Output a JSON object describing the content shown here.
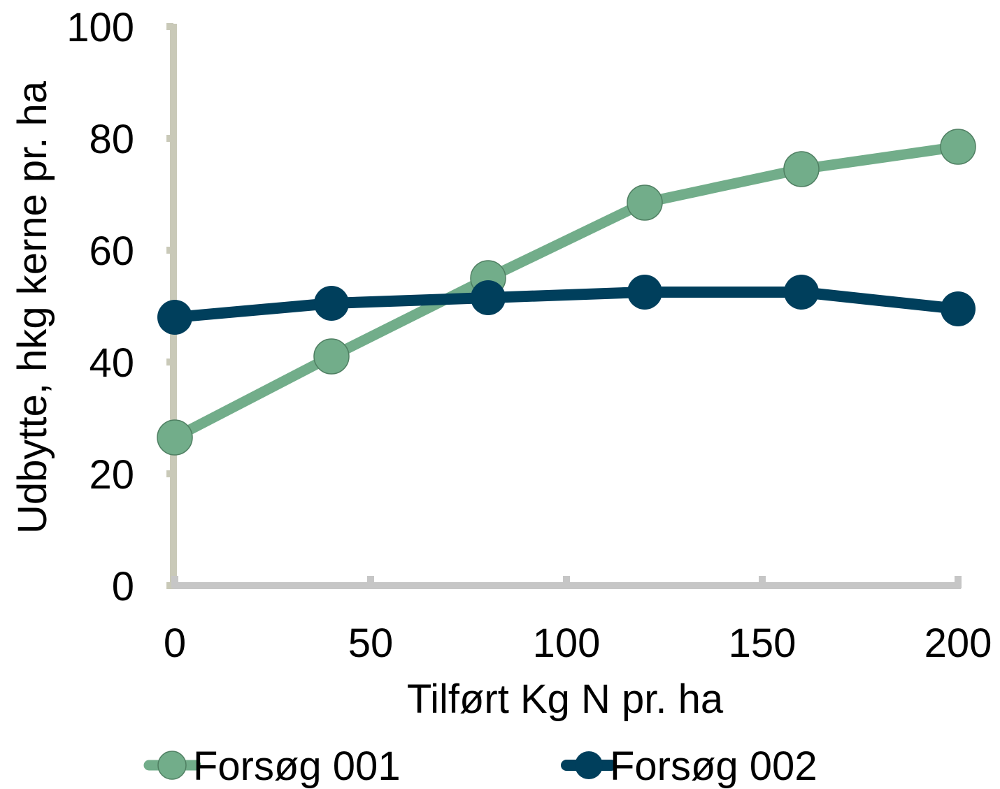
{
  "chart_data": {
    "type": "line",
    "xlabel": "Tilført Kg N pr. ha",
    "ylabel": "Udbytte, hkg kerne pr. ha",
    "xlim": [
      0,
      200
    ],
    "ylim": [
      0,
      100
    ],
    "x_ticks": [
      0,
      50,
      100,
      150,
      200
    ],
    "y_ticks": [
      0,
      20,
      40,
      60,
      80,
      100
    ],
    "x_tick_labels": [
      "0",
      "50",
      "100",
      "150",
      "200"
    ],
    "y_tick_labels": [
      "0",
      "20",
      "40",
      "60",
      "80",
      "100"
    ],
    "grid": false,
    "legend_position": "bottom",
    "x": [
      0,
      40,
      80,
      120,
      160,
      200
    ],
    "series": [
      {
        "name": "Forsøg 001",
        "values": [
          26.5,
          41,
          55,
          68.5,
          74.5,
          78.5
        ],
        "color": "#72ad8a"
      },
      {
        "name": "Forsøg 002",
        "values": [
          48,
          50.5,
          51.5,
          52.5,
          52.5,
          49.5
        ],
        "color": "#003f5c"
      }
    ],
    "axis_colors": {
      "y_axis": "#c9c9b8",
      "x_axis": "#c6c6c6"
    }
  }
}
